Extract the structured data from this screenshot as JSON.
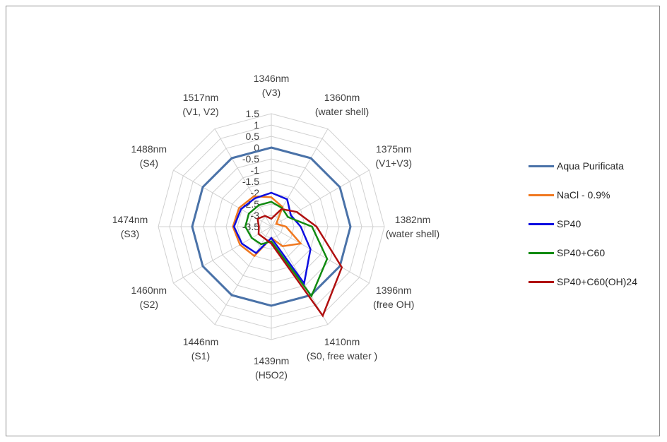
{
  "chart_data": {
    "type": "radar",
    "title": "",
    "categories": [
      [
        "1346nm",
        "(V3)"
      ],
      [
        "1360nm",
        "(water shell)"
      ],
      [
        "1375nm",
        "(V1+V3)"
      ],
      [
        "1382nm",
        "(water shell)"
      ],
      [
        "1396nm",
        "(free OH)"
      ],
      [
        "1410nm",
        "(S0, free water )"
      ],
      [
        "1439nm",
        "(H5O2)"
      ],
      [
        "1446nm",
        "(S1)"
      ],
      [
        "1460nm",
        "(S2)"
      ],
      [
        "1474nm",
        "(S3)"
      ],
      [
        "1488nm",
        "(S4)"
      ],
      [
        "1517nm",
        "(V1, V2)"
      ]
    ],
    "rlim": [
      -3.5,
      1.5
    ],
    "tick_step": 0.5,
    "tick_labels": [
      "-3.5",
      "-3",
      "-2.5",
      "-2",
      "-1.5",
      "-1",
      "-0.5",
      "0",
      "0.5",
      "1",
      "1.5"
    ],
    "grid": true,
    "legend_position": "right",
    "series": [
      {
        "name": "Aqua Purificata",
        "color": "#4a72a8",
        "width": 3,
        "values": [
          0,
          0,
          0,
          0,
          0,
          0,
          0,
          0,
          0,
          0,
          0,
          0
        ]
      },
      {
        "name": "NaCl - 0.9%",
        "color": "#f07820",
        "width": 2.5,
        "values": [
          -2.2,
          -2.5,
          -3.25,
          -2.85,
          -2.0,
          -2.5,
          -3.0,
          -2.0,
          -1.9,
          -1.8,
          -1.85,
          -1.95
        ]
      },
      {
        "name": "SP40",
        "color": "#0d0de0",
        "width": 2.5,
        "values": [
          -2.0,
          -2.1,
          -2.5,
          -2.2,
          -1.5,
          -0.6,
          -3.0,
          -2.15,
          -2.0,
          -1.85,
          -1.95,
          -2.05
        ]
      },
      {
        "name": "SP40+C60",
        "color": "#108a10",
        "width": 2.5,
        "values": [
          -2.4,
          -2.55,
          -2.65,
          -1.7,
          -0.65,
          0.05,
          -2.85,
          -2.6,
          -2.5,
          -2.35,
          -2.35,
          -2.4
        ]
      },
      {
        "name": "SP40+C60(OH)24",
        "color": "#b01010",
        "width": 2.5,
        "values": [
          -3.15,
          -2.6,
          -2.2,
          -1.5,
          0.1,
          1.05,
          -2.75,
          -2.9,
          -2.85,
          -2.95,
          -2.8,
          -2.95
        ]
      }
    ]
  }
}
